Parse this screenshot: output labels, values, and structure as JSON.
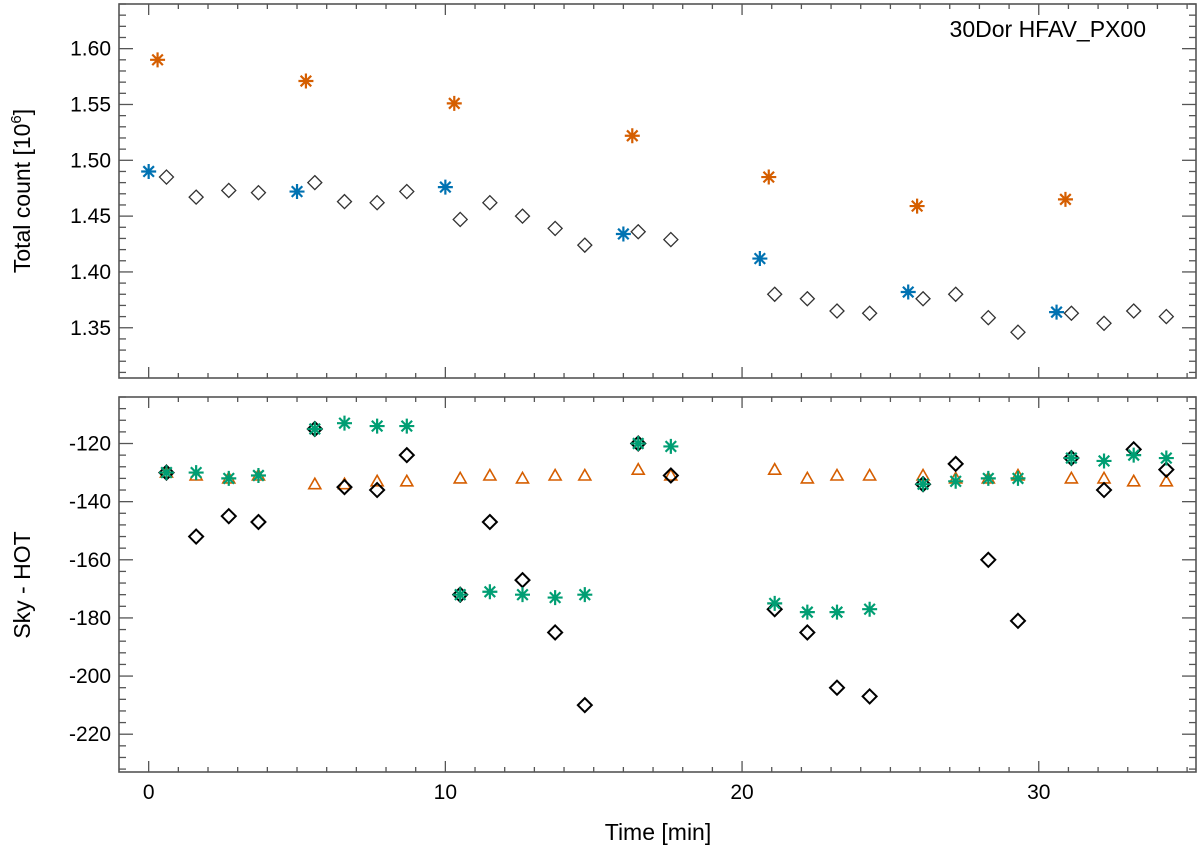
{
  "chart_data": [
    {
      "type": "scatter",
      "panel": "top",
      "annotation": "30Dor  HFAV_PX00",
      "ylabel_main": "Total count [10",
      "ylabel_sup": "6",
      "ylabel_end": "]",
      "xlim": [
        -1,
        35.3
      ],
      "ylim": [
        1.305,
        1.64
      ],
      "yticks": [
        {
          "v": 1.35,
          "label": "1.35"
        },
        {
          "v": 1.4,
          "label": "1.40"
        },
        {
          "v": 1.45,
          "label": "1.45"
        },
        {
          "v": 1.5,
          "label": "1.50"
        },
        {
          "v": 1.55,
          "label": "1.55"
        },
        {
          "v": 1.6,
          "label": "1.60"
        }
      ],
      "series": [
        {
          "name": "orange-asterisk",
          "marker": "asterisk",
          "color": "#d55e00",
          "x": [
            0.3,
            5.3,
            10.3,
            16.3,
            20.9,
            25.9,
            30.9
          ],
          "y": [
            1.59,
            1.571,
            1.551,
            1.522,
            1.485,
            1.459,
            1.465
          ]
        },
        {
          "name": "blue-asterisk",
          "marker": "asterisk",
          "color": "#0072b2",
          "x": [
            0.0,
            5.0,
            10.0,
            16.0,
            20.6,
            25.6,
            30.6
          ],
          "y": [
            1.49,
            1.472,
            1.476,
            1.434,
            1.412,
            1.382,
            1.364
          ]
        },
        {
          "name": "open-diamond",
          "marker": "diamond",
          "color": "#333333",
          "x": [
            0.6,
            1.6,
            2.7,
            3.7,
            5.6,
            6.6,
            7.7,
            8.7,
            10.5,
            11.5,
            12.6,
            13.7,
            14.7,
            16.5,
            17.6,
            21.1,
            22.2,
            23.2,
            24.3,
            26.1,
            27.2,
            28.3,
            29.3,
            31.1,
            32.2,
            33.2,
            34.3
          ],
          "y": [
            1.485,
            1.467,
            1.473,
            1.471,
            1.48,
            1.463,
            1.462,
            1.472,
            1.447,
            1.462,
            1.45,
            1.439,
            1.424,
            1.436,
            1.429,
            1.38,
            1.376,
            1.365,
            1.363,
            1.376,
            1.38,
            1.359,
            1.346,
            1.363,
            1.354,
            1.365,
            1.36
          ]
        }
      ]
    },
    {
      "type": "scatter",
      "panel": "bottom",
      "ylabel": "Sky - HOT",
      "xlabel": "Time [min]",
      "xlim": [
        -1,
        35.3
      ],
      "ylim": [
        -233,
        -104
      ],
      "xticks": [
        {
          "v": 0,
          "label": "0"
        },
        {
          "v": 10,
          "label": "10"
        },
        {
          "v": 20,
          "label": "20"
        },
        {
          "v": 30,
          "label": "30"
        }
      ],
      "yticks": [
        {
          "v": -220,
          "label": "-220"
        },
        {
          "v": -200,
          "label": "-200"
        },
        {
          "v": -180,
          "label": "-180"
        },
        {
          "v": -160,
          "label": "-160"
        },
        {
          "v": -140,
          "label": "-140"
        },
        {
          "v": -120,
          "label": "-120"
        }
      ],
      "series": [
        {
          "name": "orange-triangle",
          "marker": "triangle",
          "color": "#d55e00",
          "x": [
            0.6,
            1.6,
            2.7,
            3.7,
            5.6,
            6.6,
            7.7,
            8.7,
            10.5,
            11.5,
            12.6,
            13.7,
            14.7,
            16.5,
            17.6,
            21.1,
            22.2,
            23.2,
            24.3,
            26.1,
            27.2,
            28.3,
            29.3,
            31.1,
            32.2,
            33.2,
            34.3
          ],
          "y": [
            -130,
            -131,
            -132,
            -131,
            -134,
            -134,
            -133,
            -133,
            -132,
            -131,
            -132,
            -131,
            -131,
            -129,
            -131,
            -129,
            -132,
            -131,
            -131,
            -131,
            -132,
            -132,
            -131,
            -132,
            -132,
            -133,
            -133
          ]
        },
        {
          "name": "black-diamond",
          "marker": "diamond",
          "color": "#000000",
          "x": [
            0.6,
            1.6,
            2.7,
            3.7,
            5.6,
            6.6,
            7.7,
            8.7,
            10.5,
            11.5,
            12.6,
            13.7,
            14.7,
            16.5,
            17.6,
            21.1,
            22.2,
            23.2,
            24.3,
            26.1,
            27.2,
            28.3,
            29.3,
            31.1,
            32.2,
            33.2,
            34.3
          ],
          "y": [
            -130,
            -152,
            -145,
            -147,
            -115,
            -135,
            -136,
            -124,
            -172,
            -147,
            -167,
            -185,
            -210,
            -120,
            -131,
            -177,
            -185,
            -204,
            -207,
            -134,
            -127,
            -160,
            -181,
            -125,
            -136,
            -122,
            -129
          ]
        },
        {
          "name": "green-asterisk",
          "marker": "asterisk",
          "color": "#009e73",
          "x": [
            0.6,
            1.6,
            2.7,
            3.7,
            5.6,
            6.6,
            7.7,
            8.7,
            10.5,
            11.5,
            12.6,
            13.7,
            14.7,
            16.5,
            17.6,
            21.1,
            22.2,
            23.2,
            24.3,
            26.1,
            27.2,
            28.3,
            29.3,
            31.1,
            32.2,
            33.2,
            34.3
          ],
          "y": [
            -130,
            -130,
            -132,
            -131,
            -115,
            -113,
            -114,
            -114,
            -172,
            -171,
            -172,
            -173,
            -172,
            -120,
            -121,
            -175,
            -178,
            -178,
            -177,
            -134,
            -133,
            -132,
            -132,
            -125,
            -126,
            -124,
            -125
          ]
        }
      ]
    }
  ]
}
